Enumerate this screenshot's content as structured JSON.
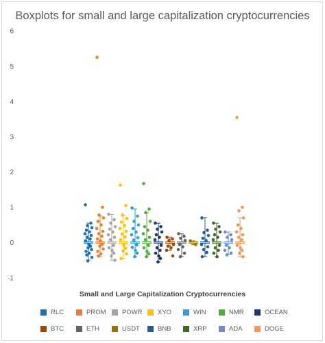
{
  "chart_data": {
    "type": "boxplot",
    "title": "Boxplots for small and large capitalization cryptocurrencies",
    "xlabel": "Small and Large Capitalization Cryptocurrencies",
    "ylabel": "",
    "ylim": [
      -1,
      6
    ],
    "yticks": [
      -1,
      0,
      1,
      2,
      3,
      4,
      5,
      6
    ],
    "grid": false,
    "legend_position": "bottom",
    "series": [
      {
        "name": "RLC",
        "color": "#1f6fb5",
        "q1": -0.03,
        "median": 0.0,
        "q3": 0.03,
        "whisker_low": -0.5,
        "whisker_high": 0.55,
        "points": [
          1.07,
          0.55,
          0.48,
          0.42,
          0.35,
          0.3,
          0.25,
          0.2,
          0.15,
          0.1,
          0.05,
          -0.05,
          -0.1,
          -0.15,
          -0.2,
          -0.25,
          -0.3,
          -0.35,
          -0.42,
          -0.52
        ]
      },
      {
        "name": "PROM",
        "color": "#ed7d31",
        "q1": -0.03,
        "median": 0.0,
        "q3": 0.03,
        "whisker_low": -0.4,
        "whisker_high": 0.75,
        "points": [
          5.25,
          1.0,
          0.78,
          0.7,
          0.6,
          0.5,
          0.4,
          0.32,
          0.25,
          0.18,
          0.1,
          0.05,
          -0.05,
          -0.1,
          -0.18,
          -0.25,
          -0.32,
          -0.38
        ]
      },
      {
        "name": "POWR",
        "color": "#a5a5a5",
        "q1": -0.03,
        "median": 0.0,
        "q3": 0.03,
        "whisker_low": -0.5,
        "whisker_high": 0.8,
        "points": [
          0.8,
          0.65,
          0.55,
          0.45,
          0.38,
          0.3,
          0.22,
          0.15,
          0.08,
          -0.08,
          -0.15,
          -0.22,
          -0.3,
          -0.38,
          -0.5
        ]
      },
      {
        "name": "XYO",
        "color": "#ffc000",
        "q1": -0.03,
        "median": 0.0,
        "q3": 0.03,
        "whisker_low": -0.45,
        "whisker_high": 0.78,
        "points": [
          1.63,
          1.05,
          0.78,
          0.68,
          0.58,
          0.48,
          0.4,
          0.32,
          0.24,
          0.16,
          0.08,
          -0.08,
          -0.16,
          -0.24,
          -0.32,
          -0.45
        ]
      },
      {
        "name": "WIN",
        "color": "#2e9fd8",
        "q1": -0.03,
        "median": 0.0,
        "q3": 0.03,
        "whisker_low": -0.4,
        "whisker_high": 0.95,
        "points": [
          0.98,
          0.75,
          0.6,
          0.5,
          0.4,
          0.3,
          0.22,
          0.14,
          0.07,
          -0.07,
          -0.14,
          -0.22,
          -0.3,
          -0.4
        ]
      },
      {
        "name": "NMR",
        "color": "#4fae3b",
        "q1": -0.03,
        "median": 0.0,
        "q3": 0.03,
        "whisker_low": -0.4,
        "whisker_high": 0.85,
        "points": [
          1.67,
          0.95,
          0.85,
          0.6,
          0.45,
          0.35,
          0.25,
          0.15,
          0.08,
          -0.08,
          -0.15,
          -0.25,
          -0.32,
          -0.4
        ]
      },
      {
        "name": "OCEAN",
        "color": "#1f3864",
        "q1": -0.03,
        "median": 0.0,
        "q3": 0.03,
        "whisker_low": -0.55,
        "whisker_high": 0.55,
        "points": [
          0.55,
          0.45,
          0.38,
          0.3,
          0.22,
          0.15,
          0.08,
          -0.08,
          -0.15,
          -0.22,
          -0.3,
          -0.38,
          -0.45,
          -0.55
        ]
      },
      {
        "name": "BTC",
        "color": "#9e480e",
        "q1": -0.03,
        "median": 0.0,
        "q3": 0.03,
        "whisker_low": -0.22,
        "whisker_high": 0.15,
        "points": [
          0.15,
          0.1,
          0.06,
          -0.06,
          -0.1,
          -0.15,
          -0.22,
          -0.38
        ]
      },
      {
        "name": "ETH",
        "color": "#636363",
        "q1": -0.03,
        "median": 0.0,
        "q3": 0.03,
        "whisker_low": -0.4,
        "whisker_high": 0.25,
        "points": [
          0.25,
          0.18,
          0.12,
          0.06,
          -0.06,
          -0.12,
          -0.2,
          -0.3,
          -0.4
        ]
      },
      {
        "name": "USDT",
        "color": "#997300",
        "q1": -0.03,
        "median": 0.0,
        "q3": 0.03,
        "whisker_low": -0.06,
        "whisker_high": 0.05,
        "points": [
          0.05,
          -0.06
        ]
      },
      {
        "name": "BNB",
        "color": "#255e91",
        "q1": -0.03,
        "median": 0.0,
        "q3": 0.03,
        "whisker_low": -0.4,
        "whisker_high": 0.7,
        "points": [
          0.7,
          0.35,
          0.28,
          0.2,
          0.12,
          0.06,
          -0.06,
          -0.12,
          -0.2,
          -0.28,
          -0.4
        ]
      },
      {
        "name": "XRP",
        "color": "#43682b",
        "q1": -0.03,
        "median": 0.0,
        "q3": 0.03,
        "whisker_low": -0.4,
        "whisker_high": 0.55,
        "points": [
          0.55,
          0.45,
          0.38,
          0.3,
          0.22,
          0.15,
          0.08,
          -0.08,
          -0.15,
          -0.22,
          -0.3,
          -0.4
        ]
      },
      {
        "name": "ADA",
        "color": "#698ed0",
        "q1": -0.03,
        "median": 0.0,
        "q3": 0.03,
        "whisker_low": -0.35,
        "whisker_high": 0.3,
        "points": [
          0.3,
          0.22,
          0.15,
          0.08,
          -0.08,
          -0.15,
          -0.22,
          -0.3,
          -0.35
        ]
      },
      {
        "name": "DOGE",
        "color": "#f1975a",
        "q1": -0.03,
        "median": 0.0,
        "q3": 0.03,
        "whisker_low": -0.4,
        "whisker_high": 0.7,
        "points": [
          3.55,
          1.0,
          0.9,
          0.7,
          0.5,
          0.4,
          0.3,
          0.22,
          0.15,
          0.08,
          -0.08,
          -0.15,
          -0.22,
          -0.3,
          -0.4
        ]
      }
    ]
  }
}
